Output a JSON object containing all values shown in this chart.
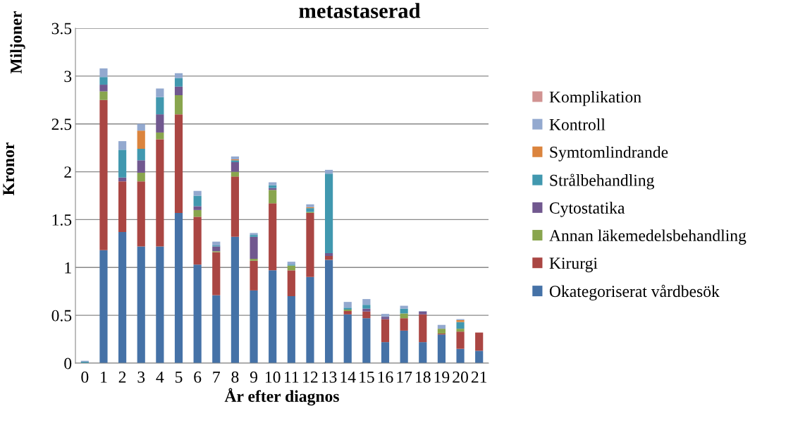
{
  "chart_data": {
    "type": "bar",
    "stacked": true,
    "title": "metastaserad",
    "xlabel": "År efter diagnos",
    "ylabel": "Kronor",
    "annotations": [
      "Miljoner"
    ],
    "categories": [
      "0",
      "1",
      "2",
      "3",
      "4",
      "5",
      "6",
      "7",
      "8",
      "9",
      "10",
      "11",
      "12",
      "13",
      "14",
      "15",
      "16",
      "17",
      "18",
      "19",
      "20",
      "21"
    ],
    "ylim": [
      0,
      3.5
    ],
    "yticks": [
      0,
      0.5,
      1,
      {
        "value": 1.5,
        "label": "1.5"
      },
      2,
      {
        "value": 2.5,
        "label": "2.5"
      },
      3,
      {
        "value": 3.5,
        "label": "3.5"
      }
    ],
    "grid": "y",
    "legend": "right",
    "series": [
      {
        "name": "Okategoriserat vårdbesök",
        "color": "#4572a7",
        "values": [
          null,
          1.18,
          1.37,
          1.22,
          1.22,
          1.57,
          1.03,
          0.71,
          1.32,
          0.76,
          0.97,
          0.7,
          0.9,
          1.08,
          0.51,
          0.47,
          0.22,
          0.34,
          0.22,
          0.3,
          0.15,
          0.13
        ]
      },
      {
        "name": "Kirurgi",
        "color": "#aa4643",
        "values": [
          null,
          1.57,
          0.53,
          0.68,
          1.12,
          1.03,
          0.5,
          0.45,
          0.63,
          0.31,
          0.7,
          0.27,
          0.67,
          0.04,
          0.035,
          0.07,
          0.24,
          0.13,
          0.29,
          0.01,
          0.18,
          0.19
        ]
      },
      {
        "name": "Annan läkemedelsbehandling",
        "color": "#89a54e",
        "values": [
          null,
          0.09,
          null,
          0.09,
          0.07,
          0.2,
          0.07,
          0.01,
          0.05,
          0.02,
          0.14,
          0.05,
          0.01,
          null,
          0.015,
          null,
          null,
          0.05,
          null,
          0.05,
          0.03,
          null
        ]
      },
      {
        "name": "Cytostatika",
        "color": "#71588f",
        "values": [
          null,
          0.07,
          0.04,
          0.13,
          0.19,
          0.09,
          0.04,
          0.05,
          0.1,
          0.23,
          0.02,
          null,
          null,
          0.03,
          null,
          0.03,
          0.025,
          null,
          0.03,
          null,
          null,
          null
        ]
      },
      {
        "name": "Strålbehandling",
        "color": "#4198af",
        "values": [
          0.015,
          0.08,
          0.29,
          0.12,
          0.18,
          0.09,
          0.11,
          0.01,
          0.02,
          0.02,
          0.03,
          0.01,
          0.04,
          0.83,
          0.02,
          0.04,
          null,
          0.05,
          null,
          null,
          0.07,
          null
        ]
      },
      {
        "name": "Symtomlindrande",
        "color": "#db843d",
        "values": [
          null,
          null,
          null,
          0.19,
          null,
          null,
          null,
          null,
          0.01,
          null,
          null,
          null,
          0.01,
          null,
          null,
          null,
          null,
          null,
          null,
          null,
          0.02,
          null
        ]
      },
      {
        "name": "Kontroll",
        "color": "#93a9cf",
        "values": [
          0.01,
          0.09,
          0.09,
          0.07,
          0.09,
          0.05,
          0.05,
          0.04,
          0.03,
          0.02,
          0.03,
          0.03,
          0.03,
          0.04,
          0.06,
          0.06,
          0.03,
          0.03,
          0.005,
          0.04,
          0.01,
          null
        ]
      },
      {
        "name": "Komplikation",
        "color": "#d19392",
        "values": [
          null,
          null,
          null,
          null,
          null,
          null,
          null,
          null,
          null,
          null,
          null,
          null,
          null,
          null,
          null,
          null,
          null,
          null,
          null,
          null,
          null,
          null
        ]
      }
    ]
  }
}
